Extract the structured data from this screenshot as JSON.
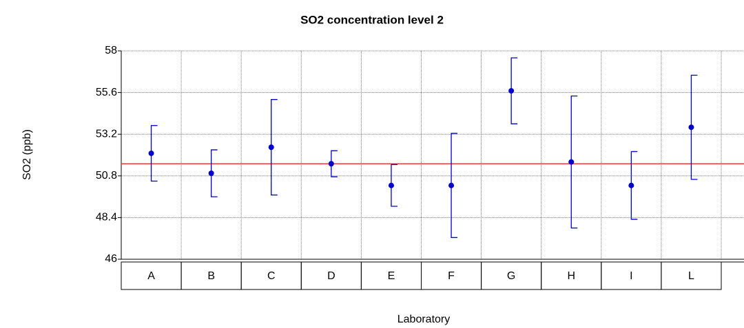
{
  "chart_data": {
    "type": "errorbar",
    "title": "SO2 concentration level 2",
    "xlabel": "Laboratory",
    "ylabel": "SO2 (ppb)",
    "categories": [
      "A",
      "B",
      "C",
      "D",
      "E",
      "F",
      "G",
      "H",
      "I",
      "L"
    ],
    "values": [
      52.1,
      50.95,
      52.45,
      51.5,
      50.25,
      50.25,
      55.7,
      51.6,
      50.25,
      53.6
    ],
    "errors": [
      1.6,
      1.35,
      2.75,
      0.75,
      1.2,
      3.0,
      1.9,
      3.8,
      1.95,
      3.0
    ],
    "color": "#0000cc",
    "reference_line": 51.5,
    "reference_color": "#ff3333",
    "ylim": [
      46,
      58
    ],
    "yticks": [
      46,
      48.4,
      50.8,
      53.2,
      55.6,
      58
    ],
    "grid": true
  }
}
